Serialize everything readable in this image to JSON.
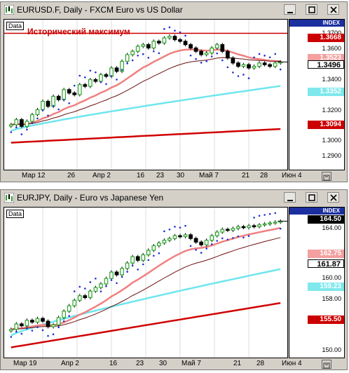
{
  "windows": [
    {
      "title": "EURUSD.F, Daily - FXCM Euro vs US Dollar",
      "data_tag": "Data",
      "annotation": "Исторический максимум",
      "index_label": "INDEX",
      "ticks": [
        "1.3700",
        "1.3600",
        "1.3400",
        "1.3200",
        "1.3000",
        "1.2900"
      ],
      "tags": [
        {
          "text": "1.3668",
          "bg": "#cc0000",
          "fg": "#ffffff"
        },
        {
          "text": "1.3523",
          "bg": "#f4a0a0",
          "fg": "#ffffff"
        },
        {
          "text": "1.3496",
          "bg": "#ffffff",
          "fg": "#000000"
        },
        {
          "text": "1.3352",
          "bg": "#7fe8ec",
          "fg": "#ffffff"
        },
        {
          "text": "1.3094",
          "bg": "#cc0000",
          "fg": "#ffffff"
        }
      ],
      "xlabels": [
        "Мар 12",
        "26",
        "Апр 2",
        "16",
        "23",
        "30",
        "Май 7",
        "21",
        "28",
        "Июн 4"
      ]
    },
    {
      "title": "EURJPY, Daily - Euro vs Japanese Yen",
      "data_tag": "Data",
      "index_label": "INDEX",
      "ticks": [
        "164.00",
        "160.00",
        "158.00",
        "150.00"
      ],
      "tags": [
        {
          "text": "164.50",
          "bg": "#000000",
          "fg": "#ffffff"
        },
        {
          "text": "162.75",
          "bg": "#f4a0a0",
          "fg": "#ffffff"
        },
        {
          "text": "161.87",
          "bg": "#ffffff",
          "fg": "#000000"
        },
        {
          "text": "159.23",
          "bg": "#7fe8ec",
          "fg": "#ffffff"
        },
        {
          "text": "155.50",
          "bg": "#cc0000",
          "fg": "#ffffff"
        }
      ],
      "xlabels": [
        "Мар 19",
        "Апр 2",
        "16",
        "23",
        "30",
        "Май 7",
        "21",
        "28",
        "Июн 4"
      ]
    }
  ],
  "colors": {
    "bull": "#2ea52e",
    "bear": "#000000",
    "sar": "#1f2fd0",
    "ma_pink": "#f08080",
    "ma_dark": "#6b1010",
    "ma_cyan": "#6ee6ee",
    "ma_red": "#d00000",
    "hline_red": "#cc0000"
  },
  "chart_data": [
    {
      "type": "candlestick",
      "symbol": "EURUSD.F",
      "ylim": [
        1.285,
        1.375
      ],
      "historical_max": 1.3668,
      "last": 1.3496,
      "ma_fast_last": 1.3523,
      "ma_mid_last": 1.3352,
      "ma_slow_last": 1.3094,
      "closes": [
        1.312,
        1.315,
        1.311,
        1.314,
        1.318,
        1.321,
        1.326,
        1.323,
        1.329,
        1.327,
        1.333,
        1.331,
        1.33,
        1.336,
        1.335,
        1.339,
        1.338,
        1.342,
        1.341,
        1.346,
        1.344,
        1.35,
        1.354,
        1.356,
        1.359,
        1.36,
        1.358,
        1.362,
        1.361,
        1.364,
        1.365,
        1.363,
        1.362,
        1.36,
        1.358,
        1.356,
        1.354,
        1.355,
        1.358,
        1.36,
        1.356,
        1.352,
        1.349,
        1.347,
        1.348,
        1.346,
        1.347,
        1.349,
        1.348,
        1.347,
        1.349,
        1.3496
      ]
    },
    {
      "type": "candlestick",
      "symbol": "EURJPY",
      "ylim": [
        149.5,
        166.0
      ],
      "last": 164.5,
      "ma_fast_last": 162.75,
      "ma_mid_last": 161.87,
      "ma_cyan_last": 159.23,
      "ma_slow_last": 155.5,
      "closes": [
        152.6,
        153.2,
        153.0,
        153.6,
        153.4,
        153.8,
        153.5,
        152.9,
        153.1,
        153.9,
        154.6,
        155.2,
        155.8,
        156.3,
        156.1,
        156.8,
        157.2,
        157.6,
        158.2,
        158.9,
        158.6,
        159.3,
        159.9,
        160.6,
        160.2,
        160.8,
        161.3,
        161.8,
        162.1,
        162.4,
        162.6,
        162.9,
        162.8,
        163.0,
        162.6,
        162.2,
        161.9,
        162.4,
        162.9,
        163.3,
        163.6,
        163.5,
        163.7,
        163.9,
        163.8,
        164.0,
        163.9,
        164.1,
        164.2,
        164.3,
        164.4,
        164.5
      ]
    }
  ]
}
